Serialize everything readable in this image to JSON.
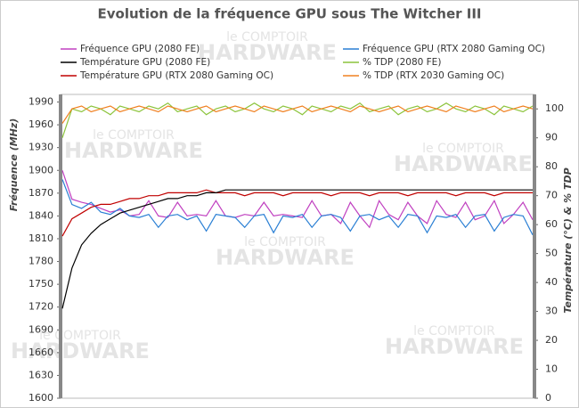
{
  "chart_data": {
    "type": "line",
    "title": "Evolution de la fréquence GPU sous The Witcher III",
    "y_label": "Fréquence (MHz)",
    "y2_label": "Température (°C) & % TDP",
    "watermark": [
      "le COMPTOIR",
      "HARDWARE"
    ],
    "ylim": [
      1600,
      2000
    ],
    "yticks": [
      1600,
      1630,
      1660,
      1690,
      1720,
      1750,
      1780,
      1810,
      1840,
      1870,
      1900,
      1930,
      1960,
      1990
    ],
    "y2lim": [
      0,
      105
    ],
    "y2ticks": [
      0,
      10,
      20,
      30,
      40,
      50,
      60,
      70,
      80,
      90,
      100
    ],
    "series": [
      {
        "name": "Fréquence GPU (2080 FE)",
        "color": "#c040c0",
        "values": [
          1900,
          1862,
          1858,
          1855,
          1850,
          1845,
          1848,
          1840,
          1842,
          1860,
          1840,
          1838,
          1858,
          1840,
          1842,
          1840,
          1860,
          1840,
          1838,
          1842,
          1840,
          1858,
          1840,
          1842,
          1840,
          1838,
          1860,
          1840,
          1842,
          1830,
          1858,
          1840,
          1825,
          1860,
          1842,
          1835,
          1858,
          1840,
          1830,
          1860,
          1842,
          1838,
          1858,
          1835,
          1840,
          1860,
          1830,
          1842,
          1858,
          1835
        ]
      },
      {
        "name": "Fréquence GPU (RTX 2080 Gaming OC)",
        "color": "#2a7fd4",
        "values": [
          1888,
          1855,
          1850,
          1858,
          1845,
          1842,
          1850,
          1840,
          1838,
          1842,
          1825,
          1840,
          1842,
          1835,
          1840,
          1820,
          1842,
          1840,
          1838,
          1825,
          1840,
          1842,
          1818,
          1840,
          1838,
          1842,
          1825,
          1840,
          1842,
          1838,
          1820,
          1840,
          1842,
          1835,
          1840,
          1825,
          1842,
          1840,
          1818,
          1840,
          1838,
          1842,
          1825,
          1840,
          1842,
          1820,
          1838,
          1842,
          1840,
          1815
        ]
      },
      {
        "name": "Température GPU  (2080 FE)",
        "color": "#000000",
        "axis": "y2",
        "values": [
          31,
          45,
          53,
          57,
          60,
          62,
          64,
          65,
          66,
          67,
          68,
          69,
          69,
          70,
          70,
          71,
          71,
          72,
          72,
          72,
          72,
          72,
          72,
          72,
          72,
          72,
          72,
          72,
          72,
          72,
          72,
          72,
          72,
          72,
          72,
          72,
          72,
          72,
          72,
          72,
          72,
          72,
          72,
          72,
          72,
          72,
          72,
          72,
          72,
          72
        ]
      },
      {
        "name": "% TDP (2080 FE)",
        "color": "#8cc43c",
        "axis": "y2",
        "values": [
          90,
          100,
          99,
          101,
          100,
          98,
          101,
          100,
          99,
          101,
          100,
          102,
          99,
          100,
          101,
          98,
          100,
          101,
          99,
          100,
          102,
          100,
          99,
          101,
          100,
          98,
          101,
          100,
          99,
          101,
          100,
          102,
          99,
          100,
          101,
          98,
          100,
          101,
          99,
          100,
          102,
          100,
          99,
          101,
          100,
          98,
          101,
          100,
          99,
          101
        ]
      },
      {
        "name": "Température GPU  (RTX 2080 Gaming OC)",
        "color": "#c00000",
        "axis": "y2",
        "values": [
          56,
          62,
          64,
          66,
          67,
          67,
          68,
          69,
          69,
          70,
          70,
          71,
          71,
          71,
          71,
          72,
          71,
          71,
          71,
          70,
          71,
          71,
          71,
          70,
          71,
          71,
          71,
          71,
          70,
          71,
          71,
          71,
          70,
          71,
          71,
          71,
          70,
          71,
          71,
          71,
          71,
          70,
          71,
          71,
          71,
          70,
          71,
          71,
          71,
          71
        ]
      },
      {
        "name": "% TDP (RTX 2030 Gaming OC)",
        "color": "#f08020",
        "axis": "y2",
        "values": [
          95,
          100,
          101,
          99,
          100,
          101,
          99,
          100,
          101,
          100,
          99,
          101,
          100,
          99,
          100,
          101,
          99,
          100,
          101,
          100,
          99,
          101,
          100,
          99,
          100,
          101,
          99,
          100,
          101,
          100,
          99,
          101,
          100,
          99,
          100,
          101,
          99,
          100,
          101,
          100,
          99,
          101,
          100,
          99,
          100,
          101,
          99,
          100,
          101,
          100
        ]
      }
    ]
  }
}
